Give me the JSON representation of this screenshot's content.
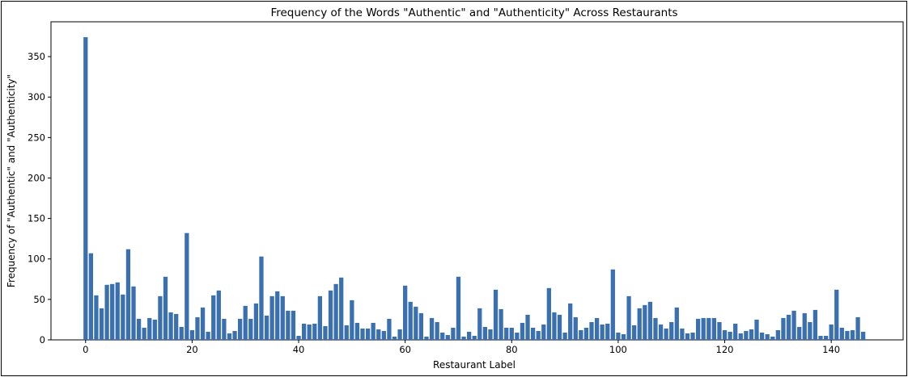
{
  "chart_data": {
    "type": "bar",
    "title": "Frequency of the Words \"Authentic\" and \"Authenticity\" Across Restaurants",
    "xlabel": "Restaurant Label",
    "ylabel": "Frequency of \"Authentic\" and \"Authenticity\"",
    "xlim": [
      -6.5,
      153.5
    ],
    "ylim": [
      0,
      393
    ],
    "xticks": [
      0,
      20,
      40,
      60,
      80,
      100,
      120,
      140
    ],
    "yticks": [
      0,
      50,
      100,
      150,
      200,
      250,
      300,
      350
    ],
    "grid": false,
    "bar_color": "#3b70b0",
    "x": [
      0,
      1,
      2,
      3,
      4,
      5,
      6,
      7,
      8,
      9,
      10,
      11,
      12,
      13,
      14,
      15,
      16,
      17,
      18,
      19,
      20,
      21,
      22,
      23,
      24,
      25,
      26,
      27,
      28,
      29,
      30,
      31,
      32,
      33,
      34,
      35,
      36,
      37,
      38,
      39,
      40,
      41,
      42,
      43,
      44,
      45,
      46,
      47,
      48,
      49,
      50,
      51,
      52,
      53,
      54,
      55,
      56,
      57,
      58,
      59,
      60,
      61,
      62,
      63,
      64,
      65,
      66,
      67,
      68,
      69,
      70,
      71,
      72,
      73,
      74,
      75,
      76,
      77,
      78,
      79,
      80,
      81,
      82,
      83,
      84,
      85,
      86,
      87,
      88,
      89,
      90,
      91,
      92,
      93,
      94,
      95,
      96,
      97,
      98,
      99,
      100,
      101,
      102,
      103,
      104,
      105,
      106,
      107,
      108,
      109,
      110,
      111,
      112,
      113,
      114,
      115,
      116,
      117,
      118,
      119,
      120,
      121,
      122,
      123,
      124,
      125,
      126,
      127,
      128,
      129,
      130,
      131,
      132,
      133,
      134,
      135,
      136,
      137,
      138,
      139,
      140,
      141,
      142,
      143,
      144,
      145,
      146
    ],
    "values": [
      374,
      107,
      55,
      39,
      68,
      69,
      71,
      56,
      112,
      66,
      26,
      15,
      27,
      25,
      54,
      78,
      34,
      32,
      16,
      132,
      12,
      28,
      40,
      10,
      55,
      61,
      26,
      8,
      11,
      26,
      42,
      26,
      45,
      103,
      30,
      54,
      60,
      54,
      36,
      36,
      5,
      20,
      19,
      20,
      54,
      17,
      61,
      69,
      77,
      18,
      49,
      21,
      14,
      14,
      21,
      13,
      11,
      26,
      4,
      13,
      67,
      47,
      41,
      33,
      4,
      27,
      22,
      9,
      6,
      15,
      78,
      4,
      10,
      5,
      39,
      16,
      13,
      62,
      38,
      15,
      15,
      9,
      21,
      31,
      15,
      11,
      19,
      64,
      34,
      31,
      9,
      45,
      28,
      12,
      15,
      22,
      27,
      19,
      20,
      87,
      9,
      7,
      54,
      18,
      39,
      43,
      47,
      27,
      19,
      14,
      22,
      40,
      14,
      8,
      9,
      26,
      27,
      27,
      27,
      22,
      12,
      10,
      20,
      8,
      11,
      13,
      25,
      9,
      7,
      4,
      12,
      27,
      31,
      36,
      16,
      33,
      22,
      37,
      5,
      5,
      19,
      62,
      15,
      11,
      12,
      28,
      10
    ]
  }
}
